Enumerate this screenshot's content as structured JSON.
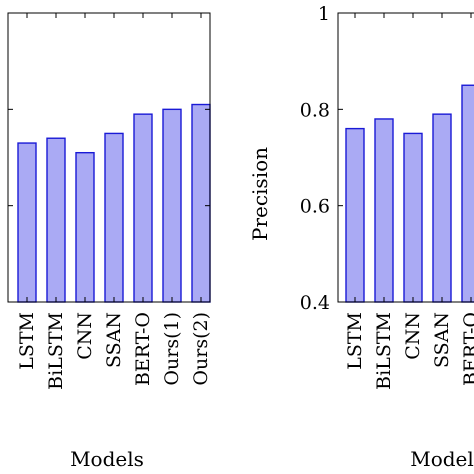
{
  "colors": {
    "bar_fill": "#aaaaf4",
    "bar_stroke": "#1a1ad6",
    "axis": "#000000"
  },
  "chart_data": [
    {
      "type": "bar",
      "title": "",
      "xlabel": "Models",
      "ylabel": "",
      "ylim": [
        0.4,
        1.0
      ],
      "y_ticks": [
        0.4,
        0.6,
        0.8,
        1.0
      ],
      "y_tick_labels": [],
      "grid": false,
      "categories": [
        "LSTM",
        "BiLSTM",
        "CNN",
        "SSAN",
        "BERT-O",
        "Ours(1)",
        "Ours(2)"
      ],
      "values": [
        0.73,
        0.74,
        0.71,
        0.75,
        0.79,
        0.8,
        0.81
      ]
    },
    {
      "type": "bar",
      "title": "",
      "xlabel": "Model",
      "ylabel": "Precision",
      "ylim": [
        0.4,
        1.0
      ],
      "y_ticks": [
        0.4,
        0.6,
        0.8,
        1.0
      ],
      "y_tick_labels": [
        "0.4",
        "0.6",
        "0.8",
        "1"
      ],
      "grid": false,
      "categories": [
        "LSTM",
        "BiLSTM",
        "CNN",
        "SSAN",
        "BERT-O"
      ],
      "values": [
        0.76,
        0.78,
        0.75,
        0.79,
        0.85
      ]
    }
  ]
}
